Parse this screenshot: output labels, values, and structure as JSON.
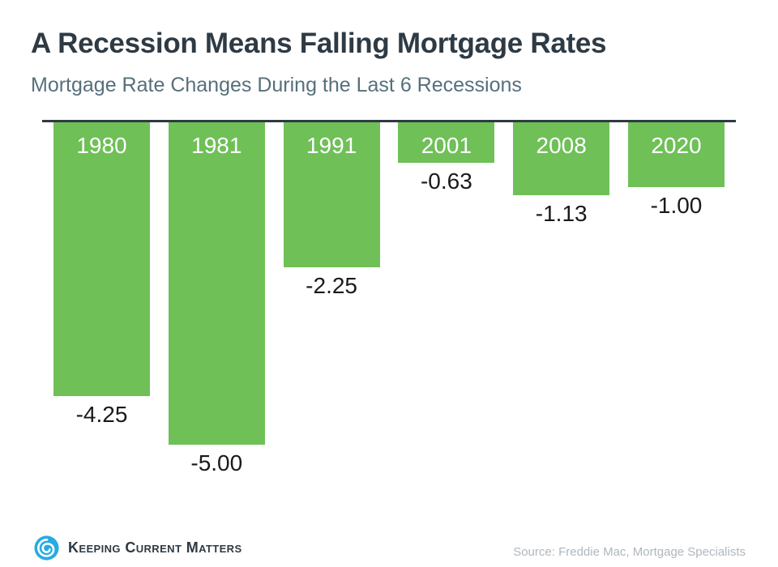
{
  "header": {
    "title": "A Recession Means Falling Mortgage Rates",
    "subtitle": "Mortgage Rate Changes During the Last 6 Recessions"
  },
  "chart_data": {
    "type": "bar",
    "title": "A Recession Means Falling Mortgage Rates",
    "subtitle": "Mortgage Rate Changes During the Last 6 Recessions",
    "categories": [
      "1980",
      "1981",
      "1991",
      "2001",
      "2008",
      "2020"
    ],
    "values": [
      -4.25,
      -5.0,
      -2.25,
      -0.63,
      -1.13,
      -1.0
    ],
    "value_labels": [
      "-4.25",
      "-5.00",
      "-2.25",
      "-0.63",
      "-1.13",
      "-1.00"
    ],
    "xlabel": "",
    "ylabel": "",
    "ylim": [
      -5.5,
      0
    ],
    "grid": false,
    "legend": false,
    "orientation": "vertical-negative",
    "category_label_position": "inside-bar-top",
    "value_label_position": "below-bar",
    "bar_color": "#6FC057"
  },
  "footer": {
    "logo_text": "Keeping Current Matters",
    "source": "Source: Freddie Mac, Mortgage Specialists"
  },
  "colors": {
    "bar_green": "#6FC057",
    "title_text": "#2E3A44",
    "subtitle_text": "#56707B",
    "axis_line": "#2E3A44",
    "value_text": "#1A1A1A",
    "year_text": "#FFFFFF",
    "source_text": "#AFB7BD",
    "logo_blue": "#29ABE2"
  }
}
